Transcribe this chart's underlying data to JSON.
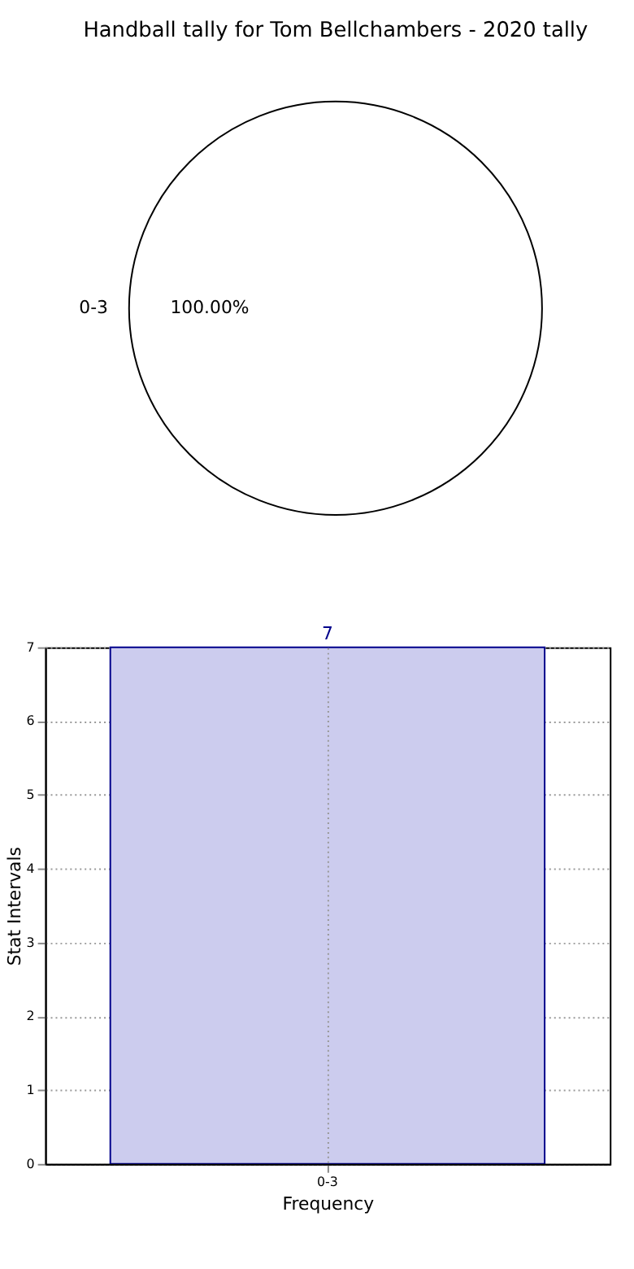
{
  "chart_data": [
    {
      "type": "pie",
      "title": "Handball tally for Tom Bellchambers - 2020 tally",
      "categories": [
        "0-3"
      ],
      "values": [
        100
      ],
      "colors": [
        "#ffffff"
      ],
      "value_labels": [
        "100.00%"
      ]
    },
    {
      "type": "bar",
      "categories": [
        "0-3"
      ],
      "values": [
        7
      ],
      "color": "#ccccee",
      "xlabel": "Frequency",
      "ylabel": "Stat Intervals",
      "ylim": [
        0,
        7
      ],
      "yticks": [
        0,
        1,
        2,
        3,
        4,
        5,
        6,
        7
      ],
      "grid": true,
      "data_labels": true
    }
  ]
}
